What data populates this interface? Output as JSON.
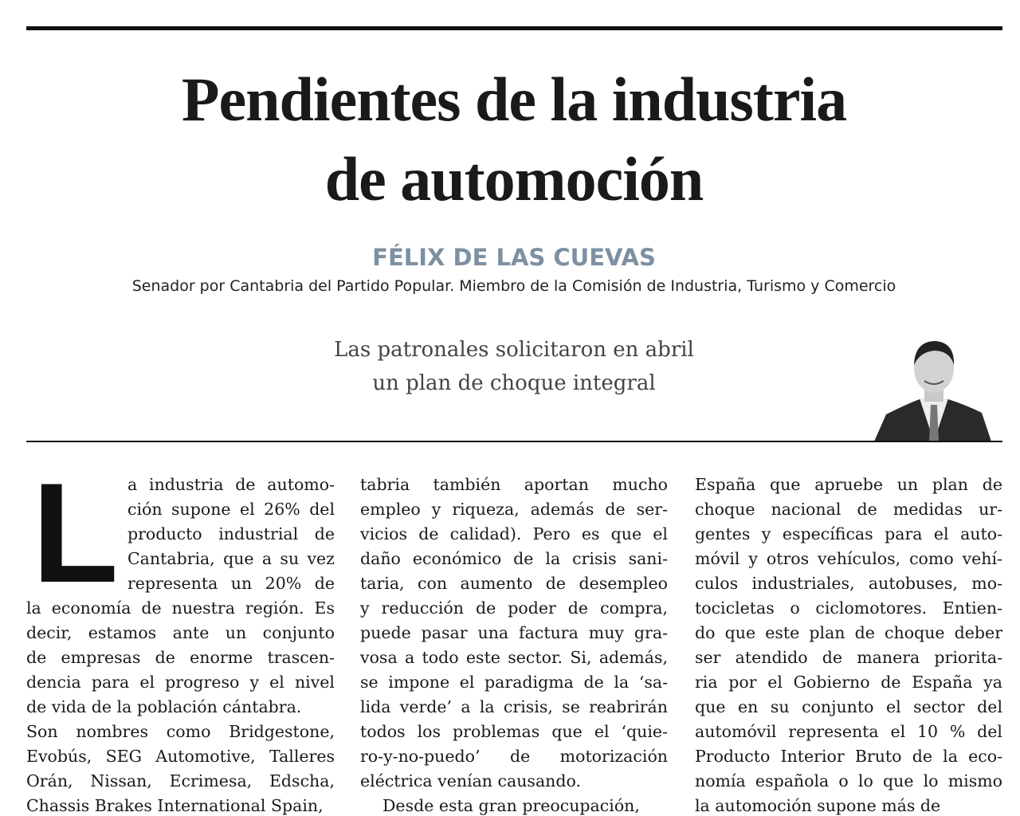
{
  "header": {
    "title": [
      "Pendientes de la industria",
      "de automoción"
    ],
    "author": "FÉLIX DE LAS CUEVAS",
    "author_role": "Senador por Cantabria del Partido Popular. Miembro de la Comisión de Industria, Turismo y Comercio"
  },
  "subtitle": [
    "Las patronales solicitaron en abril",
    "un plan de choque integral"
  ],
  "body": {
    "drop_cap": "L",
    "columns": [
      [
        "a industria de automo-",
        "ción supone el 26% del",
        "producto industrial de",
        "Cantabria, que a su vez",
        "representa un 20% de",
        "la economía de nuestra región. Es",
        "decir, estamos ante un conjunto",
        "de empresas de enorme trascen-",
        "dencia para el progreso y el nivel",
        "de vida de la población cántabra.",
        "Son nombres como Bridgestone,",
        "Evobús, SEG Automotive, Talleres",
        "Orán, Nissan, Ecrimesa, Edscha,",
        "Chassis Brakes International Spain,"
      ],
      [
        "tabria también aportan mucho",
        "empleo y riqueza, además de ser-",
        "vicios de calidad). Pero es que el",
        "daño económico de la crisis sani-",
        "taria, con aumento de desempleo",
        "y reducción de poder de compra,",
        "puede pasar una factura muy gra-",
        "vosa a todo este sector. Si, además,",
        "se impone el paradigma de la ‘sa-",
        "lida verde’ a la crisis, se reabrirán",
        "todos los problemas que el ‘quie-",
        "ro-y-no-puedo’ de motorización",
        "eléctrica venían causando.",
        "Desde esta gran preocupación,"
      ],
      [
        "España que apruebe un plan de",
        "choque nacional de medidas ur-",
        "gentes y específicas para el auto-",
        "móvil y otros vehículos, como vehí-",
        "culos industriales, autobuses, mo-",
        "tocicletas o ciclomotores. Entien-",
        "do que este plan de choque deber",
        "ser atendido de manera priorita-",
        "ria por el Gobierno de España ya",
        "que en su conjunto el sector del",
        "automóvil representa el 10 % del",
        "Producto Interior Bruto de la eco-",
        "nomía española o lo que lo mismo",
        "la automoción supone más de"
      ]
    ]
  }
}
